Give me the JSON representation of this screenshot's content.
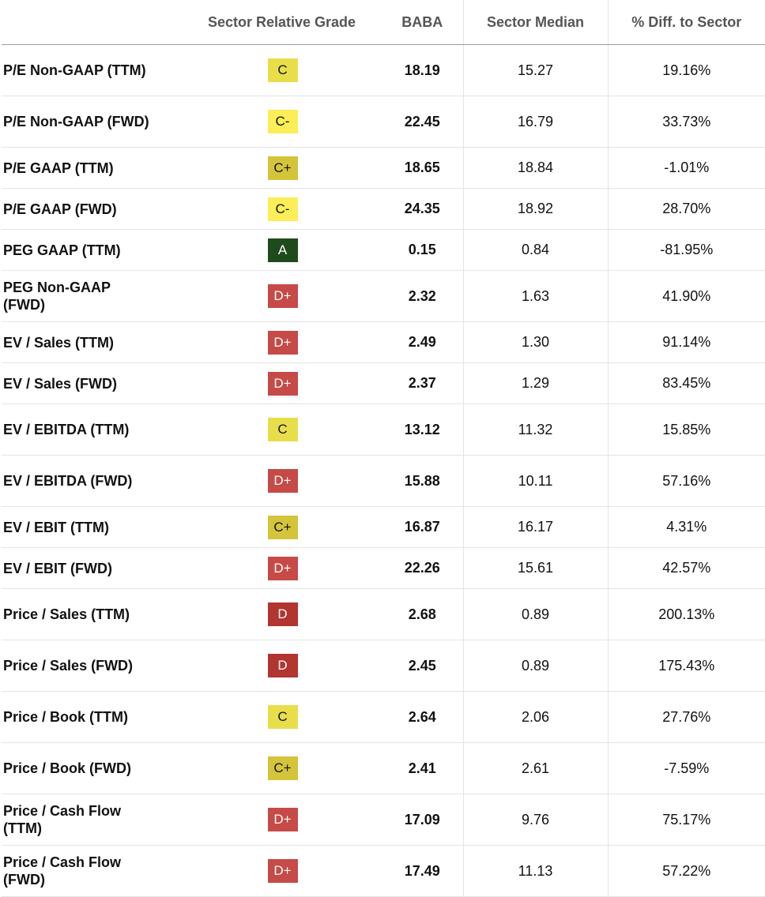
{
  "table": {
    "headers": {
      "metric": "",
      "grade": "Sector Relative Grade",
      "ticker": "BABA",
      "median": "Sector Median",
      "diff": "% Diff. to Sector"
    },
    "grade_colors": {
      "A": {
        "bg": "#1f4a1c",
        "fg": "#ffffff"
      },
      "C+": {
        "bg": "#d4c43a",
        "fg": "#111111"
      },
      "C": {
        "bg": "#e8de4a",
        "fg": "#111111"
      },
      "C-": {
        "bg": "#fbee57",
        "fg": "#111111"
      },
      "D+": {
        "bg": "#c64a48",
        "fg": "#ffffff"
      },
      "D": {
        "bg": "#b23530",
        "fg": "#ffffff"
      }
    },
    "rows": [
      {
        "metric": "P/E Non-GAAP (TTM)",
        "grade": "C",
        "value": "18.19",
        "median": "15.27",
        "diff": "19.16%"
      },
      {
        "metric": "P/E Non-GAAP (FWD)",
        "grade": "C-",
        "value": "22.45",
        "median": "16.79",
        "diff": "33.73%"
      },
      {
        "metric": "P/E GAAP (TTM)",
        "grade": "C+",
        "value": "18.65",
        "median": "18.84",
        "diff": "-1.01%"
      },
      {
        "metric": "P/E GAAP (FWD)",
        "grade": "C-",
        "value": "24.35",
        "median": "18.92",
        "diff": "28.70%"
      },
      {
        "metric": "PEG GAAP (TTM)",
        "grade": "A",
        "value": "0.15",
        "median": "0.84",
        "diff": "-81.95%"
      },
      {
        "metric": "PEG Non-GAAP (FWD)",
        "grade": "D+",
        "value": "2.32",
        "median": "1.63",
        "diff": "41.90%"
      },
      {
        "metric": "EV / Sales (TTM)",
        "grade": "D+",
        "value": "2.49",
        "median": "1.30",
        "diff": "91.14%"
      },
      {
        "metric": "EV / Sales (FWD)",
        "grade": "D+",
        "value": "2.37",
        "median": "1.29",
        "diff": "83.45%"
      },
      {
        "metric": "EV / EBITDA (TTM)",
        "grade": "C",
        "value": "13.12",
        "median": "11.32",
        "diff": "15.85%"
      },
      {
        "metric": "EV / EBITDA (FWD)",
        "grade": "D+",
        "value": "15.88",
        "median": "10.11",
        "diff": "57.16%"
      },
      {
        "metric": "EV / EBIT (TTM)",
        "grade": "C+",
        "value": "16.87",
        "median": "16.17",
        "diff": "4.31%"
      },
      {
        "metric": "EV / EBIT (FWD)",
        "grade": "D+",
        "value": "22.26",
        "median": "15.61",
        "diff": "42.57%"
      },
      {
        "metric": "Price / Sales (TTM)",
        "grade": "D",
        "value": "2.68",
        "median": "0.89",
        "diff": "200.13%"
      },
      {
        "metric": "Price / Sales (FWD)",
        "grade": "D",
        "value": "2.45",
        "median": "0.89",
        "diff": "175.43%"
      },
      {
        "metric": "Price / Book (TTM)",
        "grade": "C",
        "value": "2.64",
        "median": "2.06",
        "diff": "27.76%"
      },
      {
        "metric": "Price / Book (FWD)",
        "grade": "C+",
        "value": "2.41",
        "median": "2.61",
        "diff": "-7.59%"
      },
      {
        "metric": "Price / Cash Flow (TTM)",
        "grade": "D+",
        "value": "17.09",
        "median": "9.76",
        "diff": "75.17%"
      },
      {
        "metric": "Price / Cash Flow (FWD)",
        "grade": "D+",
        "value": "17.49",
        "median": "11.13",
        "diff": "57.22%"
      }
    ]
  }
}
